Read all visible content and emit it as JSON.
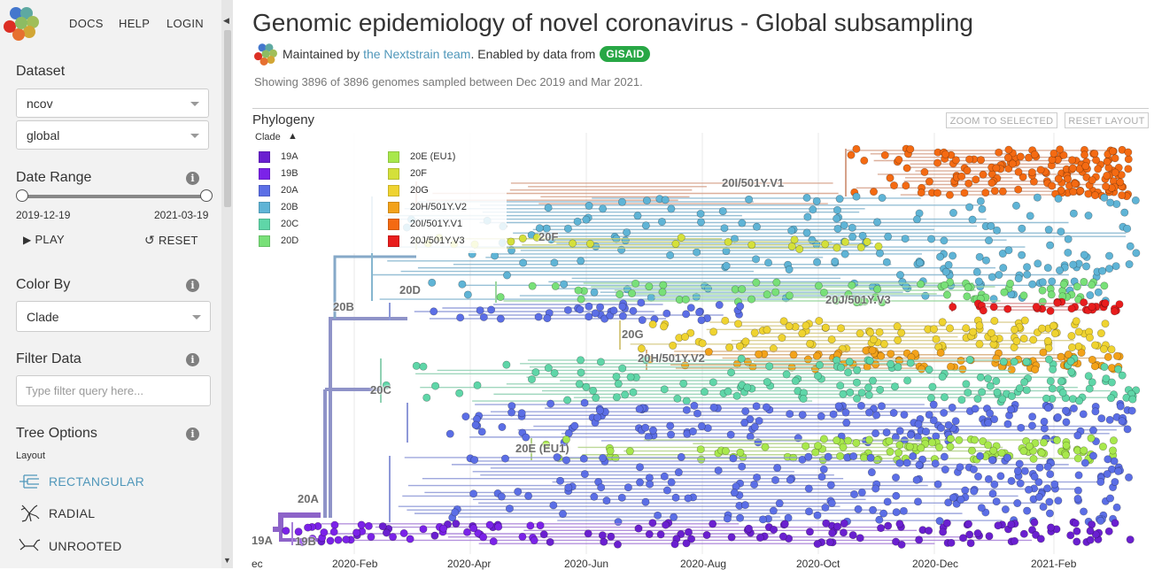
{
  "header": {
    "nav": {
      "docs": "DOCS",
      "help": "HELP",
      "login": "LOGIN"
    }
  },
  "sidebar": {
    "dataset": {
      "title": "Dataset",
      "selected": [
        "ncov",
        "global"
      ]
    },
    "date_range": {
      "title": "Date Range",
      "start": "2019-12-19",
      "end": "2021-03-19",
      "play": "PLAY",
      "reset": "RESET"
    },
    "color_by": {
      "title": "Color By",
      "selected": "Clade"
    },
    "filter": {
      "title": "Filter Data",
      "placeholder": "Type filter query here..."
    },
    "tree_options": {
      "title": "Tree Options",
      "layout_label": "Layout",
      "layouts": [
        "RECTANGULAR",
        "RADIAL",
        "UNROOTED"
      ],
      "active_layout": "RECTANGULAR"
    }
  },
  "main": {
    "title": "Genomic epidemiology of novel coronavirus - Global subsampling",
    "byline": {
      "maintained_by": "Maintained by",
      "team": "the Nextstrain team",
      "enabled_by": ". Enabled by data from",
      "gisaid": "GISAID"
    },
    "summary": "Showing 3896 of 3896 genomes sampled between Dec 2019 and Mar 2021.",
    "panel": {
      "title": "Phylogeny",
      "zoom_button": "ZOOM TO SELECTED",
      "reset_button": "RESET LAYOUT"
    }
  },
  "legend": {
    "title": "Clade",
    "items": [
      {
        "label": "19A",
        "color": "#6a1fd0"
      },
      {
        "label": "19B",
        "color": "#7b22e8"
      },
      {
        "label": "20A",
        "color": "#5b6ee6"
      },
      {
        "label": "20B",
        "color": "#5fb4d6"
      },
      {
        "label": "20C",
        "color": "#5fd6a8"
      },
      {
        "label": "20D",
        "color": "#78e078"
      },
      {
        "label": "20E (EU1)",
        "color": "#a8e84c"
      },
      {
        "label": "20F",
        "color": "#d4e03a"
      },
      {
        "label": "20G",
        "color": "#efd330"
      },
      {
        "label": "20H/501Y.V2",
        "color": "#f3a21a"
      },
      {
        "label": "20I/501Y.V1",
        "color": "#f46a12"
      },
      {
        "label": "20J/501Y.V3",
        "color": "#e81d1d"
      }
    ]
  },
  "tree": {
    "clade_labels": [
      "20I/501Y.V1",
      "20F",
      "20D",
      "20J/501Y.V3",
      "20B",
      "20G",
      "20H/501Y.V2",
      "20C",
      "20E (EU1)",
      "20A",
      "19A",
      "19B"
    ],
    "axis_ticks": [
      "ec",
      "2020-Feb",
      "2020-Apr",
      "2020-Jun",
      "2020-Aug",
      "2020-Oct",
      "2020-Dec",
      "2021-Feb"
    ]
  }
}
